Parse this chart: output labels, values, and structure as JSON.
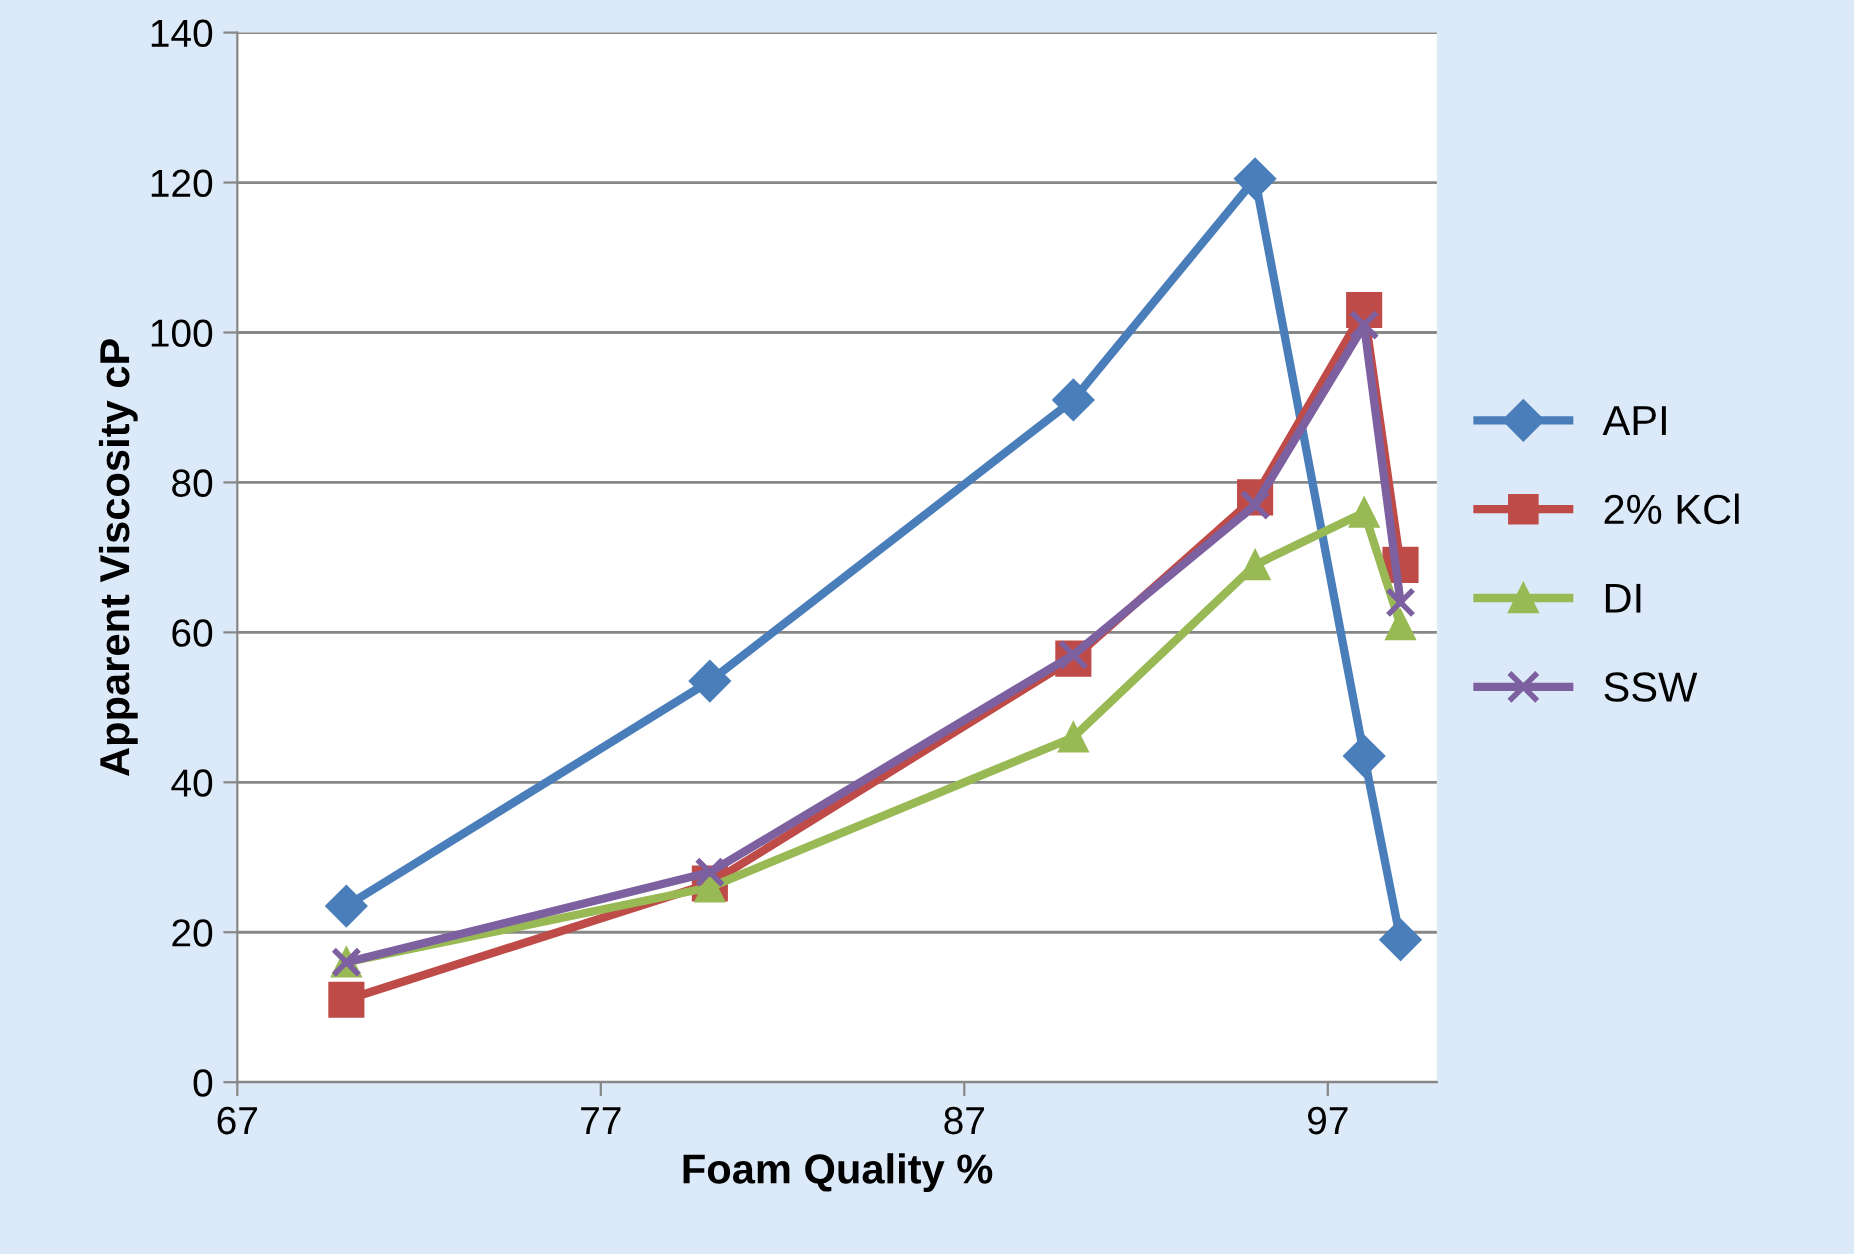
{
  "chart_data": {
    "type": "line",
    "xlabel": "Foam Quality %",
    "ylabel": "Apparent Viscosity cP",
    "x": [
      70,
      80,
      90,
      95,
      98,
      99
    ],
    "series": [
      {
        "name": "API",
        "color": "#4a7ebb",
        "marker": "diamond",
        "values": [
          23.5,
          53.5,
          91,
          120.5,
          43.5,
          19
        ]
      },
      {
        "name": "2% KCl",
        "color": "#be4b48",
        "marker": "square",
        "values": [
          11,
          26.5,
          56.5,
          78,
          103,
          69
        ]
      },
      {
        "name": "DI",
        "color": "#98b954",
        "marker": "triangle",
        "values": [
          16,
          26,
          46,
          69,
          76,
          61
        ]
      },
      {
        "name": "SSW",
        "color": "#7d60a0",
        "marker": "cross",
        "values": [
          16,
          28,
          57,
          77,
          101,
          64
        ]
      }
    ],
    "xlim": [
      67,
      100
    ],
    "xticks": [
      67,
      77,
      87,
      97
    ],
    "ylim": [
      0,
      140
    ],
    "yticks": [
      0,
      20,
      40,
      60,
      80,
      100,
      120,
      140
    ],
    "grid": "y",
    "legend": "right"
  }
}
